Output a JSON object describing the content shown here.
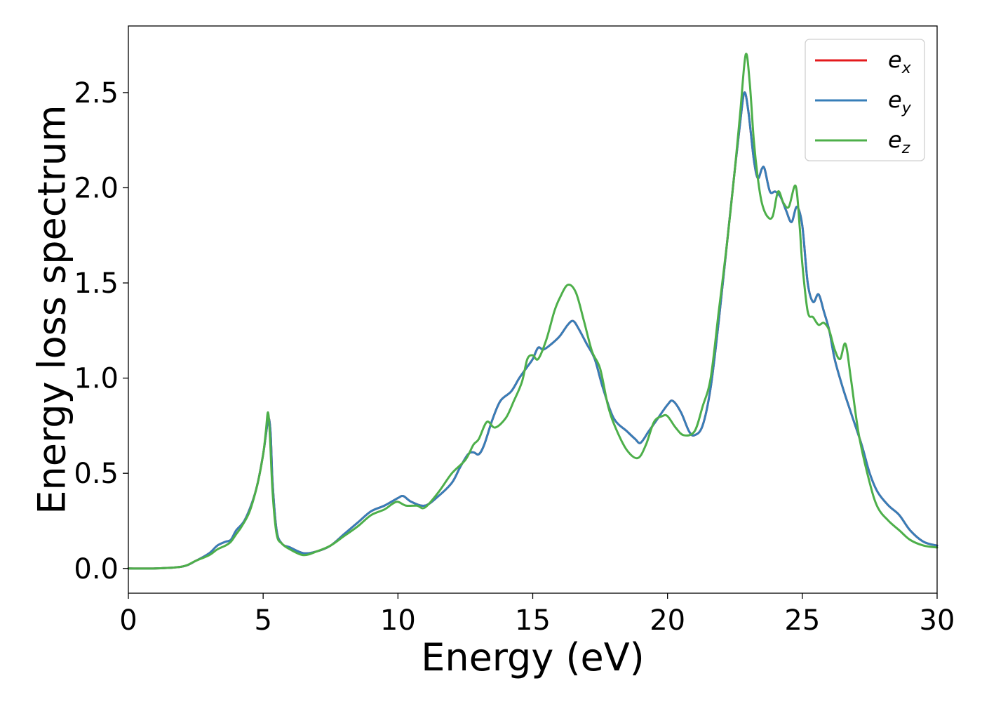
{
  "chart_data": {
    "type": "line",
    "title": "",
    "xlabel": "Energy (eV)",
    "ylabel": "Energy loss spectrum",
    "xlim": [
      0,
      30
    ],
    "ylim": [
      -0.13,
      2.85
    ],
    "xticks": [
      0,
      5,
      10,
      15,
      20,
      25,
      30
    ],
    "xtick_labels": [
      "0",
      "5",
      "10",
      "15",
      "20",
      "25",
      "30"
    ],
    "yticks": [
      0.0,
      0.5,
      1.0,
      1.5,
      2.0,
      2.5
    ],
    "ytick_labels": [
      "0.0",
      "0.5",
      "1.0",
      "1.5",
      "2.0",
      "2.5"
    ],
    "grid": false,
    "legend_position": "top-right",
    "series": [
      {
        "name": "e_x",
        "legend_base": "e",
        "legend_sub": "x",
        "color": "#e41a1c",
        "x": [
          0,
          1,
          2,
          2.5,
          3,
          3.3,
          3.6,
          3.8,
          4.0,
          4.3,
          4.6,
          4.8,
          5.0,
          5.1,
          5.2,
          5.28,
          5.35,
          5.5,
          5.7,
          6.0,
          6.5,
          7.0,
          7.5,
          8.0,
          8.5,
          9.0,
          9.5,
          10.0,
          10.2,
          10.5,
          11.0,
          11.5,
          12.0,
          12.3,
          12.6,
          12.8,
          13.0,
          13.2,
          13.5,
          13.8,
          14.2,
          14.5,
          14.8,
          15.0,
          15.2,
          15.4,
          15.7,
          16.0,
          16.3,
          16.5,
          16.7,
          17.0,
          17.3,
          17.6,
          18.0,
          18.5,
          18.8,
          19.0,
          19.3,
          19.6,
          20.0,
          20.2,
          20.5,
          20.8,
          21.0,
          21.3,
          21.6,
          21.9,
          22.2,
          22.5,
          22.7,
          22.85,
          23.0,
          23.2,
          23.35,
          23.5,
          23.6,
          23.8,
          24.0,
          24.2,
          24.4,
          24.6,
          24.8,
          25.0,
          25.2,
          25.4,
          25.6,
          25.8,
          26.0,
          26.2,
          26.5,
          26.8,
          27.2,
          27.5,
          27.8,
          28.2,
          28.6,
          29.0,
          29.5,
          30.0
        ],
        "y": [
          0.0,
          0.0,
          0.01,
          0.04,
          0.08,
          0.12,
          0.14,
          0.15,
          0.2,
          0.25,
          0.35,
          0.45,
          0.6,
          0.7,
          0.79,
          0.7,
          0.45,
          0.2,
          0.13,
          0.11,
          0.08,
          0.09,
          0.12,
          0.18,
          0.24,
          0.3,
          0.33,
          0.37,
          0.38,
          0.35,
          0.33,
          0.38,
          0.45,
          0.53,
          0.6,
          0.61,
          0.6,
          0.65,
          0.78,
          0.88,
          0.93,
          1.0,
          1.06,
          1.1,
          1.16,
          1.15,
          1.18,
          1.22,
          1.28,
          1.3,
          1.26,
          1.18,
          1.1,
          0.95,
          0.79,
          0.72,
          0.68,
          0.66,
          0.72,
          0.78,
          0.86,
          0.88,
          0.82,
          0.72,
          0.7,
          0.75,
          0.95,
          1.3,
          1.7,
          2.1,
          2.35,
          2.5,
          2.4,
          2.15,
          2.05,
          2.1,
          2.1,
          1.98,
          1.98,
          1.95,
          1.88,
          1.82,
          1.9,
          1.8,
          1.5,
          1.4,
          1.44,
          1.35,
          1.25,
          1.1,
          0.95,
          0.82,
          0.65,
          0.5,
          0.4,
          0.33,
          0.28,
          0.2,
          0.14,
          0.12
        ]
      },
      {
        "name": "e_y",
        "legend_base": "e",
        "legend_sub": "y",
        "color": "#377eb8",
        "x": [
          0,
          1,
          2,
          2.5,
          3,
          3.3,
          3.6,
          3.8,
          4.0,
          4.3,
          4.6,
          4.8,
          5.0,
          5.1,
          5.2,
          5.28,
          5.35,
          5.5,
          5.7,
          6.0,
          6.5,
          7.0,
          7.5,
          8.0,
          8.5,
          9.0,
          9.5,
          10.0,
          10.2,
          10.5,
          11.0,
          11.5,
          12.0,
          12.3,
          12.6,
          12.8,
          13.0,
          13.2,
          13.5,
          13.8,
          14.2,
          14.5,
          14.8,
          15.0,
          15.2,
          15.4,
          15.7,
          16.0,
          16.3,
          16.5,
          16.7,
          17.0,
          17.3,
          17.6,
          18.0,
          18.5,
          18.8,
          19.0,
          19.3,
          19.6,
          20.0,
          20.2,
          20.5,
          20.8,
          21.0,
          21.3,
          21.6,
          21.9,
          22.2,
          22.5,
          22.7,
          22.85,
          23.0,
          23.2,
          23.35,
          23.5,
          23.6,
          23.8,
          24.0,
          24.2,
          24.4,
          24.6,
          24.8,
          25.0,
          25.2,
          25.4,
          25.6,
          25.8,
          26.0,
          26.2,
          26.5,
          26.8,
          27.2,
          27.5,
          27.8,
          28.2,
          28.6,
          29.0,
          29.5,
          30.0
        ],
        "y": [
          0.0,
          0.0,
          0.01,
          0.04,
          0.08,
          0.12,
          0.14,
          0.15,
          0.2,
          0.25,
          0.35,
          0.45,
          0.6,
          0.7,
          0.79,
          0.7,
          0.45,
          0.2,
          0.13,
          0.11,
          0.08,
          0.09,
          0.12,
          0.18,
          0.24,
          0.3,
          0.33,
          0.37,
          0.38,
          0.35,
          0.33,
          0.38,
          0.45,
          0.53,
          0.6,
          0.61,
          0.6,
          0.65,
          0.78,
          0.88,
          0.93,
          1.0,
          1.06,
          1.1,
          1.16,
          1.15,
          1.18,
          1.22,
          1.28,
          1.3,
          1.26,
          1.18,
          1.1,
          0.95,
          0.79,
          0.72,
          0.68,
          0.66,
          0.72,
          0.78,
          0.86,
          0.88,
          0.82,
          0.72,
          0.7,
          0.75,
          0.95,
          1.3,
          1.7,
          2.1,
          2.35,
          2.5,
          2.4,
          2.15,
          2.05,
          2.1,
          2.1,
          1.98,
          1.98,
          1.95,
          1.88,
          1.82,
          1.9,
          1.8,
          1.5,
          1.4,
          1.44,
          1.35,
          1.25,
          1.1,
          0.95,
          0.82,
          0.65,
          0.5,
          0.4,
          0.33,
          0.28,
          0.2,
          0.14,
          0.12
        ]
      },
      {
        "name": "e_z",
        "legend_base": "e",
        "legend_sub": "z",
        "color": "#4daf4a",
        "x": [
          0,
          1,
          2,
          2.5,
          3,
          3.3,
          3.6,
          3.8,
          4.0,
          4.2,
          4.5,
          4.8,
          5.0,
          5.1,
          5.18,
          5.25,
          5.35,
          5.5,
          5.7,
          6.0,
          6.5,
          7.0,
          7.5,
          8.0,
          8.5,
          9.0,
          9.5,
          9.8,
          10.0,
          10.3,
          10.7,
          11.0,
          11.5,
          12.0,
          12.5,
          12.8,
          13.0,
          13.3,
          13.6,
          14.0,
          14.3,
          14.6,
          14.8,
          15.0,
          15.2,
          15.5,
          15.8,
          16.0,
          16.3,
          16.6,
          16.9,
          17.2,
          17.5,
          17.8,
          18.1,
          18.5,
          18.9,
          19.2,
          19.5,
          19.8,
          20.0,
          20.3,
          20.6,
          21.0,
          21.3,
          21.6,
          21.9,
          22.2,
          22.5,
          22.7,
          22.9,
          23.05,
          23.2,
          23.35,
          23.5,
          23.7,
          23.9,
          24.1,
          24.3,
          24.5,
          24.75,
          24.9,
          25.0,
          25.2,
          25.4,
          25.6,
          25.8,
          26.0,
          26.2,
          26.4,
          26.6,
          26.8,
          27.1,
          27.5,
          27.8,
          28.2,
          28.6,
          29.0,
          29.5,
          30.0
        ],
        "y": [
          0.0,
          0.0,
          0.01,
          0.04,
          0.07,
          0.1,
          0.12,
          0.14,
          0.18,
          0.22,
          0.3,
          0.45,
          0.6,
          0.72,
          0.82,
          0.7,
          0.4,
          0.18,
          0.13,
          0.1,
          0.07,
          0.09,
          0.12,
          0.17,
          0.22,
          0.28,
          0.31,
          0.34,
          0.35,
          0.33,
          0.33,
          0.32,
          0.4,
          0.5,
          0.57,
          0.65,
          0.68,
          0.77,
          0.74,
          0.79,
          0.88,
          0.98,
          1.1,
          1.12,
          1.1,
          1.2,
          1.35,
          1.42,
          1.49,
          1.45,
          1.3,
          1.14,
          1.05,
          0.85,
          0.73,
          0.62,
          0.58,
          0.65,
          0.77,
          0.8,
          0.8,
          0.74,
          0.7,
          0.72,
          0.85,
          1.0,
          1.35,
          1.7,
          2.1,
          2.4,
          2.7,
          2.55,
          2.25,
          2.05,
          1.92,
          1.85,
          1.85,
          1.98,
          1.92,
          1.9,
          2.01,
          1.8,
          1.6,
          1.35,
          1.32,
          1.28,
          1.29,
          1.25,
          1.15,
          1.1,
          1.18,
          1.0,
          0.7,
          0.45,
          0.32,
          0.25,
          0.2,
          0.15,
          0.12,
          0.11
        ]
      }
    ]
  }
}
